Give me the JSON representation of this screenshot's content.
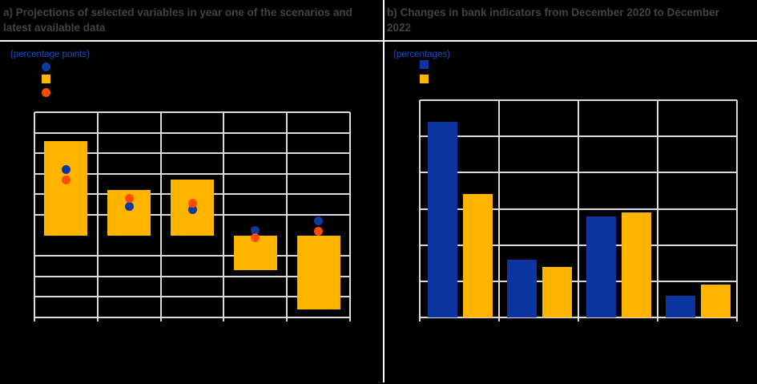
{
  "panel_a": {
    "title": "a) Projections of selected variables in year one of the scenarios and latest available data",
    "subtitle": "(percentage points)",
    "legend": [
      {
        "marker": "circle",
        "color": "#0d3a9e",
        "label": ""
      },
      {
        "marker": "square",
        "color": "#ffb400",
        "label": ""
      },
      {
        "marker": "circle",
        "color": "#ff4b00",
        "label": ""
      }
    ]
  },
  "panel_b": {
    "title": "b) Changes in bank indicators from December 2020 to December 2022",
    "subtitle": "(percentages)",
    "legend": [
      {
        "marker": "square",
        "color": "#0d35a0",
        "label": ""
      },
      {
        "marker": "square",
        "color": "#ffb400",
        "label": ""
      }
    ]
  },
  "chart_data": [
    {
      "panel": "a",
      "type": "bar",
      "title": "a) Projections of selected variables in year one of the scenarios and latest available data",
      "subtitle_unit": "(percentage points)",
      "categories": [
        "",
        "",
        "",
        "",
        ""
      ],
      "series": [
        {
          "name": "scenario-range-bar",
          "type": "bar",
          "color": "#ffb400",
          "values": [
            4.6,
            2.2,
            2.7,
            -1.7,
            -3.6
          ]
        },
        {
          "name": "blue-dot",
          "type": "scatter",
          "color": "#0d3a9e",
          "values": [
            3.2,
            1.4,
            1.25,
            0.25,
            0.7
          ]
        },
        {
          "name": "orange-dot",
          "type": "scatter",
          "color": "#ff4b00",
          "values": [
            2.7,
            1.8,
            1.55,
            -0.1,
            0.2
          ]
        }
      ],
      "ylim": [
        -4,
        6
      ],
      "grid_step": 1,
      "axis_tick_labels_visible": false,
      "legend_position": "top-left"
    },
    {
      "panel": "b",
      "type": "bar",
      "title": "b) Changes in bank indicators from December 2020 to December 2022",
      "subtitle_unit": "(percentages)",
      "categories": [
        "",
        "",
        "",
        ""
      ],
      "series": [
        {
          "name": "blue-bar",
          "type": "bar",
          "color": "#0d35a0",
          "values": [
            5.4,
            1.6,
            2.8,
            0.6
          ]
        },
        {
          "name": "yellow-bar",
          "type": "bar",
          "color": "#ffb400",
          "values": [
            3.4,
            1.4,
            2.9,
            0.9
          ]
        }
      ],
      "ylim": [
        0,
        6
      ],
      "grid_step": 1,
      "axis_tick_labels_visible": false,
      "legend_position": "top-left"
    }
  ],
  "colors": {
    "background": "#000000",
    "grid": "#d9d9d9",
    "divider": "#ffffff",
    "title_text": "#434343",
    "subtitle_text": "#1b4dc1"
  }
}
